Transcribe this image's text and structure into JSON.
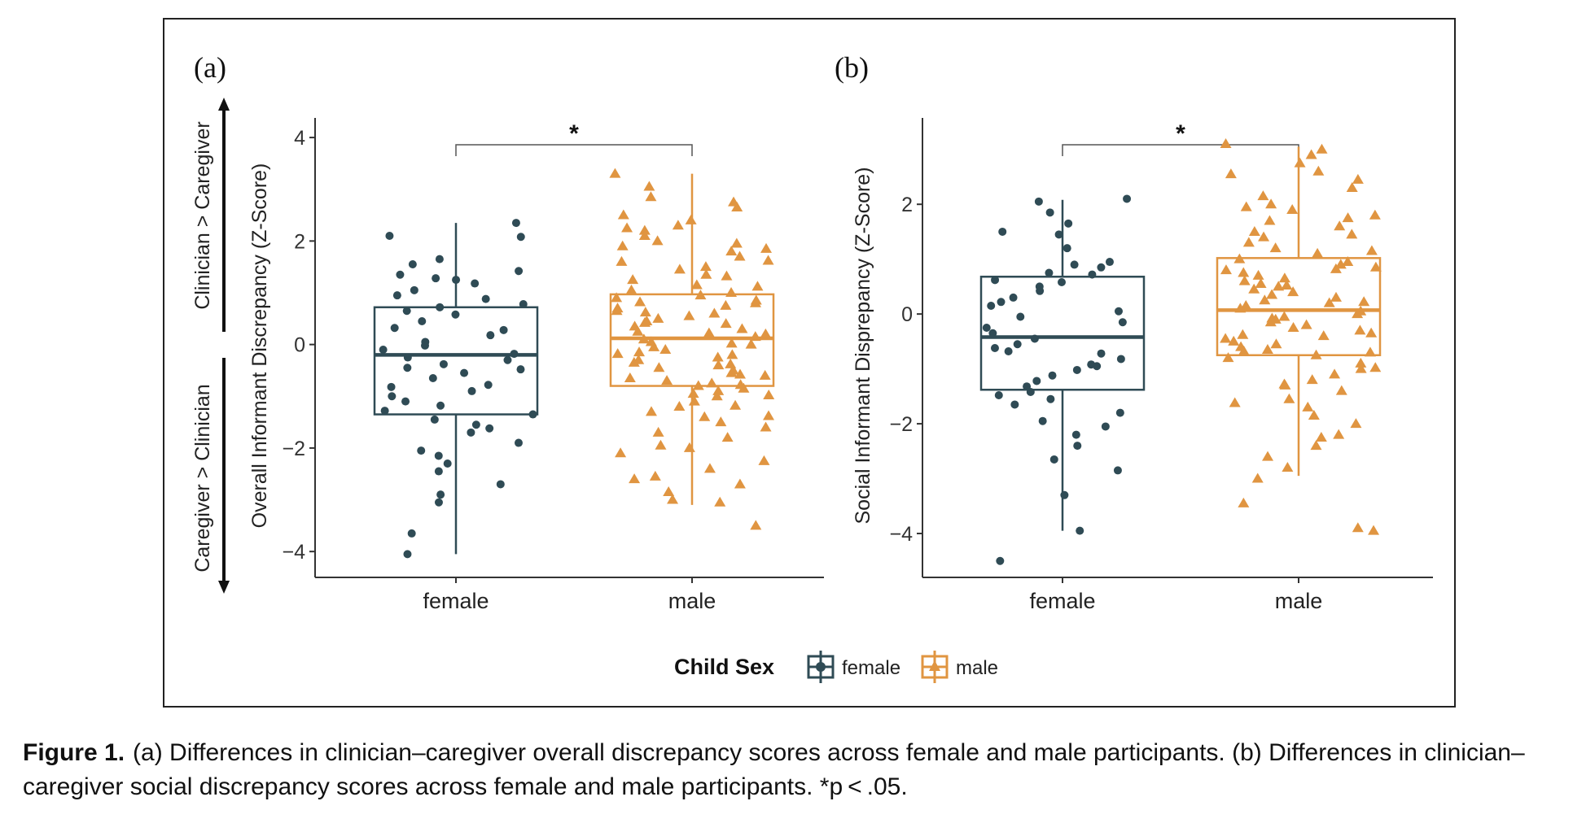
{
  "colors": {
    "female": "#2f4b55",
    "male": "#e09541",
    "axis": "#333333",
    "text": "#222222"
  },
  "chart_data": [
    {
      "panel_label": "(a)",
      "type": "boxplot",
      "categories": [
        "female",
        "male"
      ],
      "ylabel": "Overall Informant Discrepancy (Z-Score)",
      "ylim": [
        -4.5,
        4.3
      ],
      "yticks": [
        -4,
        -2,
        0,
        2,
        4
      ],
      "ytick_labels": [
        "−4",
        "−2",
        "0",
        "2",
        "4"
      ],
      "side_arrow_labels": {
        "top": "Clinician > Caregiver",
        "bottom": "Caregiver > Clinician"
      },
      "significance": "*",
      "series": [
        {
          "name": "female",
          "marker": "circle",
          "box": {
            "whisker_low": -4.05,
            "q1": -1.35,
            "median": -0.2,
            "q3": 0.72,
            "whisker_high": 2.35
          },
          "points": [
            2.35,
            2.08,
            2.1,
            1.65,
            1.42,
            1.35,
            1.28,
            1.25,
            1.18,
            1.05,
            0.95,
            0.78,
            0.72,
            0.65,
            0.58,
            0.45,
            0.32,
            0.18,
            0.05,
            -0.02,
            -0.1,
            -0.18,
            -0.25,
            -0.3,
            -0.38,
            -0.45,
            -0.55,
            -0.65,
            -0.78,
            -0.9,
            -1.0,
            -1.1,
            -1.18,
            -1.28,
            -1.35,
            -1.45,
            -1.55,
            -1.7,
            -1.9,
            -2.05,
            -2.15,
            -2.3,
            -2.45,
            -2.7,
            -2.9,
            -3.05,
            -3.65,
            -4.05,
            0.88,
            -0.82,
            1.55,
            -1.62,
            0.28,
            -0.48
          ]
        },
        {
          "name": "male",
          "marker": "triangle",
          "box": {
            "whisker_low": -3.1,
            "q1": -0.8,
            "median": 0.12,
            "q3": 0.97,
            "whisker_high": 3.3
          },
          "points": [
            3.3,
            3.05,
            2.85,
            2.65,
            2.5,
            2.4,
            2.3,
            2.2,
            2.1,
            2.0,
            1.9,
            1.8,
            1.7,
            1.6,
            1.5,
            1.45,
            1.35,
            1.25,
            1.15,
            1.05,
            1.0,
            0.95,
            0.9,
            0.85,
            0.8,
            0.75,
            0.7,
            0.65,
            0.6,
            0.55,
            0.5,
            0.45,
            0.4,
            0.35,
            0.3,
            0.25,
            0.2,
            0.15,
            0.1,
            0.05,
            0.0,
            -0.05,
            -0.1,
            -0.15,
            -0.2,
            -0.25,
            -0.3,
            -0.35,
            -0.4,
            -0.45,
            -0.5,
            -0.55,
            -0.6,
            -0.65,
            -0.7,
            -0.75,
            -0.8,
            -0.85,
            -0.9,
            -0.95,
            -1.0,
            -1.1,
            -1.2,
            -1.3,
            -1.4,
            -1.5,
            -1.6,
            -1.7,
            -1.8,
            -1.95,
            -2.1,
            -2.25,
            -2.4,
            -2.55,
            -2.7,
            -2.85,
            -3.0,
            -3.05,
            -3.5,
            1.95,
            1.62,
            1.32,
            1.12,
            0.82,
            0.62,
            0.42,
            0.22,
            0.02,
            -0.18,
            -0.38,
            -0.58,
            -0.78,
            -0.98,
            -1.18,
            -1.38,
            2.75,
            2.25,
            1.85,
            -2.0,
            -2.6
          ]
        }
      ]
    },
    {
      "panel_label": "(b)",
      "type": "boxplot",
      "categories": [
        "female",
        "male"
      ],
      "ylabel": "Social Informant Disprepancy (Z-Score)",
      "ylim": [
        -4.8,
        3.5
      ],
      "yticks": [
        -4,
        -2,
        0,
        2
      ],
      "ytick_labels": [
        "−4",
        "−2",
        "0",
        "2"
      ],
      "significance": "*",
      "series": [
        {
          "name": "female",
          "marker": "circle",
          "box": {
            "whisker_low": -3.95,
            "q1": -1.38,
            "median": -0.42,
            "q3": 0.68,
            "whisker_high": 2.08
          },
          "points": [
            2.1,
            2.05,
            1.85,
            1.5,
            1.45,
            1.2,
            0.95,
            0.9,
            0.85,
            0.75,
            0.62,
            0.58,
            0.5,
            0.42,
            0.3,
            0.15,
            0.05,
            -0.05,
            -0.15,
            -0.25,
            -0.35,
            -0.45,
            -0.55,
            -0.62,
            -0.72,
            -0.82,
            -0.92,
            -1.02,
            -1.12,
            -1.22,
            -1.32,
            -1.42,
            -1.55,
            -1.65,
            -1.8,
            -1.95,
            -2.05,
            -2.2,
            -2.4,
            -2.65,
            -2.85,
            -3.3,
            -3.95,
            -4.5,
            1.65,
            0.72,
            -0.95,
            -1.48,
            0.22,
            -0.68
          ]
        },
        {
          "name": "male",
          "marker": "triangle",
          "box": {
            "whisker_low": -2.95,
            "q1": -0.75,
            "median": 0.07,
            "q3": 1.02,
            "whisker_high": 3.05
          },
          "points": [
            3.1,
            3.0,
            2.9,
            2.75,
            2.6,
            2.45,
            2.3,
            2.15,
            2.0,
            1.9,
            1.8,
            1.7,
            1.6,
            1.5,
            1.4,
            1.3,
            1.2,
            1.1,
            1.0,
            0.95,
            0.9,
            0.85,
            0.8,
            0.75,
            0.7,
            0.65,
            0.6,
            0.55,
            0.5,
            0.45,
            0.4,
            0.35,
            0.3,
            0.25,
            0.2,
            0.15,
            0.1,
            0.05,
            0.0,
            -0.05,
            -0.1,
            -0.15,
            -0.2,
            -0.25,
            -0.3,
            -0.35,
            -0.4,
            -0.45,
            -0.5,
            -0.55,
            -0.6,
            -0.65,
            -0.7,
            -0.75,
            -0.8,
            -0.9,
            -1.0,
            -1.1,
            -1.2,
            -1.3,
            -1.4,
            -1.55,
            -1.7,
            -1.85,
            -2.0,
            -2.2,
            -2.4,
            -2.6,
            -2.8,
            -3.0,
            -3.45,
            -3.95,
            -3.9,
            1.75,
            1.45,
            1.15,
            0.82,
            0.52,
            0.22,
            -0.08,
            -0.38,
            -0.68,
            -0.98,
            -1.28,
            2.55,
            1.95,
            -2.25,
            -1.62
          ]
        }
      ]
    }
  ],
  "legend": {
    "title": "Child Sex",
    "items": [
      "female",
      "male"
    ]
  },
  "caption": {
    "label": "Figure 1.",
    "text": "(a) Differences in clinician–caregiver overall discrepancy scores across female and male participants. (b) Differences in clinician–caregiver social discrepancy scores across female and male participants. *p < .05."
  }
}
